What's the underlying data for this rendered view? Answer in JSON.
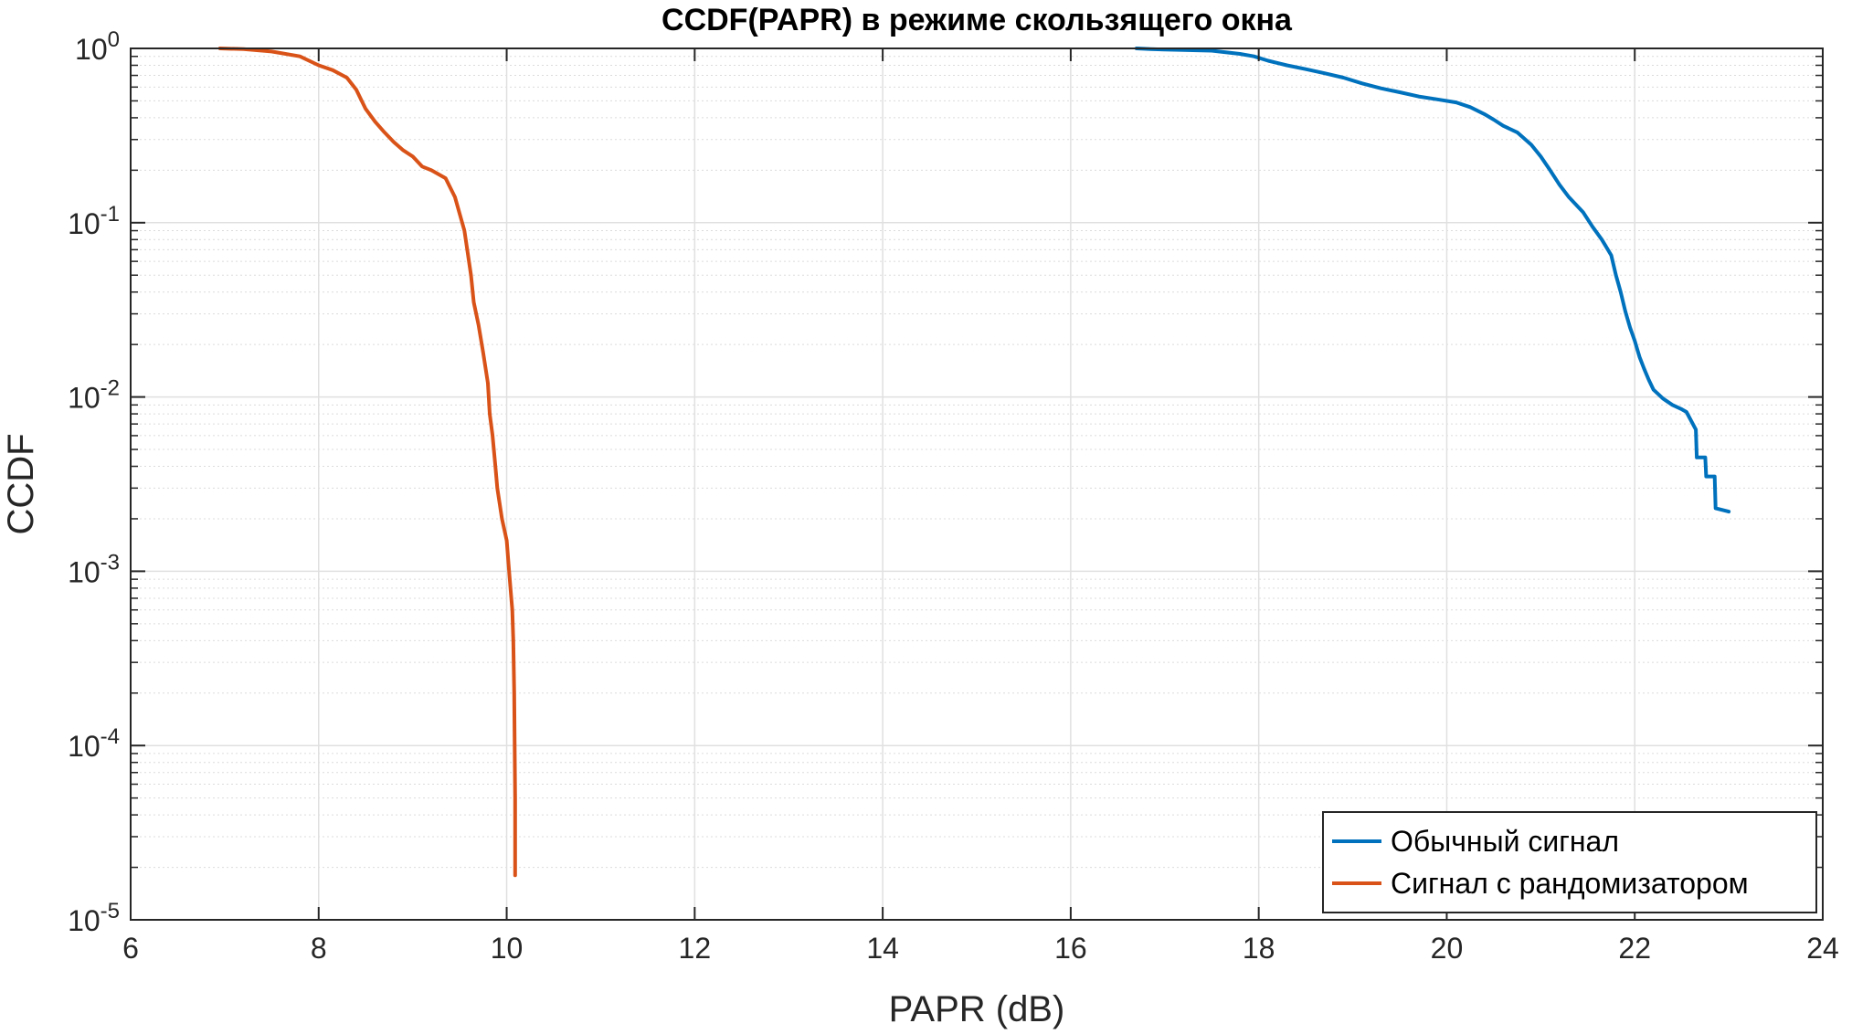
{
  "chart_data": {
    "type": "line",
    "title": "CCDF(PAPR) в режиме скользящего окна",
    "xlabel": "PAPR (dB)",
    "ylabel": "CCDF",
    "xlim": [
      6,
      24
    ],
    "ylim": [
      1e-05,
      1
    ],
    "yscale": "log",
    "grid": true,
    "minor_grid": true,
    "legend_position": "bottom-right",
    "x_ticks": [
      6,
      8,
      10,
      12,
      14,
      16,
      18,
      20,
      22,
      24
    ],
    "y_ticks": [
      {
        "value": 1,
        "base": "10",
        "exp": "0"
      },
      {
        "value": 0.1,
        "base": "10",
        "exp": "-1"
      },
      {
        "value": 0.01,
        "base": "10",
        "exp": "-2"
      },
      {
        "value": 0.001,
        "base": "10",
        "exp": "-3"
      },
      {
        "value": 0.0001,
        "base": "10",
        "exp": "-4"
      },
      {
        "value": 1e-05,
        "base": "10",
        "exp": "-5"
      }
    ],
    "series": [
      {
        "name": "Обычный сигнал",
        "color": "#0072BD",
        "x": [
          16.7,
          16.85,
          17.0,
          17.5,
          17.8,
          17.95,
          18.1,
          18.3,
          18.5,
          18.7,
          18.9,
          19.1,
          19.3,
          19.5,
          19.7,
          19.9,
          20.1,
          20.25,
          20.4,
          20.5,
          20.6,
          20.75,
          20.9,
          21.0,
          21.1,
          21.2,
          21.3,
          21.45,
          21.55,
          21.65,
          21.75,
          21.8,
          21.85,
          21.9,
          21.95,
          22.0,
          22.05,
          22.1,
          22.15,
          22.2,
          22.3,
          22.4,
          22.5,
          22.55,
          22.65,
          22.66,
          22.75,
          22.76,
          22.85,
          22.86,
          23.0
        ],
        "y": [
          1.0,
          0.99,
          0.985,
          0.97,
          0.93,
          0.9,
          0.85,
          0.8,
          0.76,
          0.72,
          0.68,
          0.63,
          0.59,
          0.56,
          0.53,
          0.51,
          0.49,
          0.46,
          0.42,
          0.39,
          0.36,
          0.33,
          0.28,
          0.24,
          0.2,
          0.165,
          0.14,
          0.115,
          0.095,
          0.08,
          0.065,
          0.05,
          0.04,
          0.031,
          0.025,
          0.021,
          0.017,
          0.0145,
          0.0125,
          0.011,
          0.0098,
          0.009,
          0.0085,
          0.0082,
          0.0065,
          0.0045,
          0.0045,
          0.0035,
          0.0035,
          0.0023,
          0.0022
        ]
      },
      {
        "name": "Сигнал с рандомизатором",
        "color": "#D95319",
        "x": [
          6.95,
          7.2,
          7.5,
          7.8,
          8.0,
          8.15,
          8.3,
          8.4,
          8.5,
          8.6,
          8.7,
          8.8,
          8.9,
          9.0,
          9.1,
          9.2,
          9.35,
          9.45,
          9.55,
          9.62,
          9.65,
          9.7,
          9.75,
          9.8,
          9.82,
          9.85,
          9.88,
          9.9,
          9.95,
          10.0,
          10.02,
          10.04,
          10.06,
          10.07,
          10.08,
          10.085,
          10.09,
          10.09
        ],
        "y": [
          1.0,
          0.99,
          0.96,
          0.9,
          0.8,
          0.75,
          0.68,
          0.58,
          0.45,
          0.38,
          0.33,
          0.29,
          0.26,
          0.24,
          0.21,
          0.2,
          0.18,
          0.14,
          0.09,
          0.05,
          0.035,
          0.026,
          0.018,
          0.012,
          0.008,
          0.006,
          0.004,
          0.003,
          0.002,
          0.0015,
          0.0011,
          0.0008,
          0.0006,
          0.0004,
          0.0002,
          0.0001,
          5e-05,
          1.8e-05
        ]
      }
    ]
  }
}
